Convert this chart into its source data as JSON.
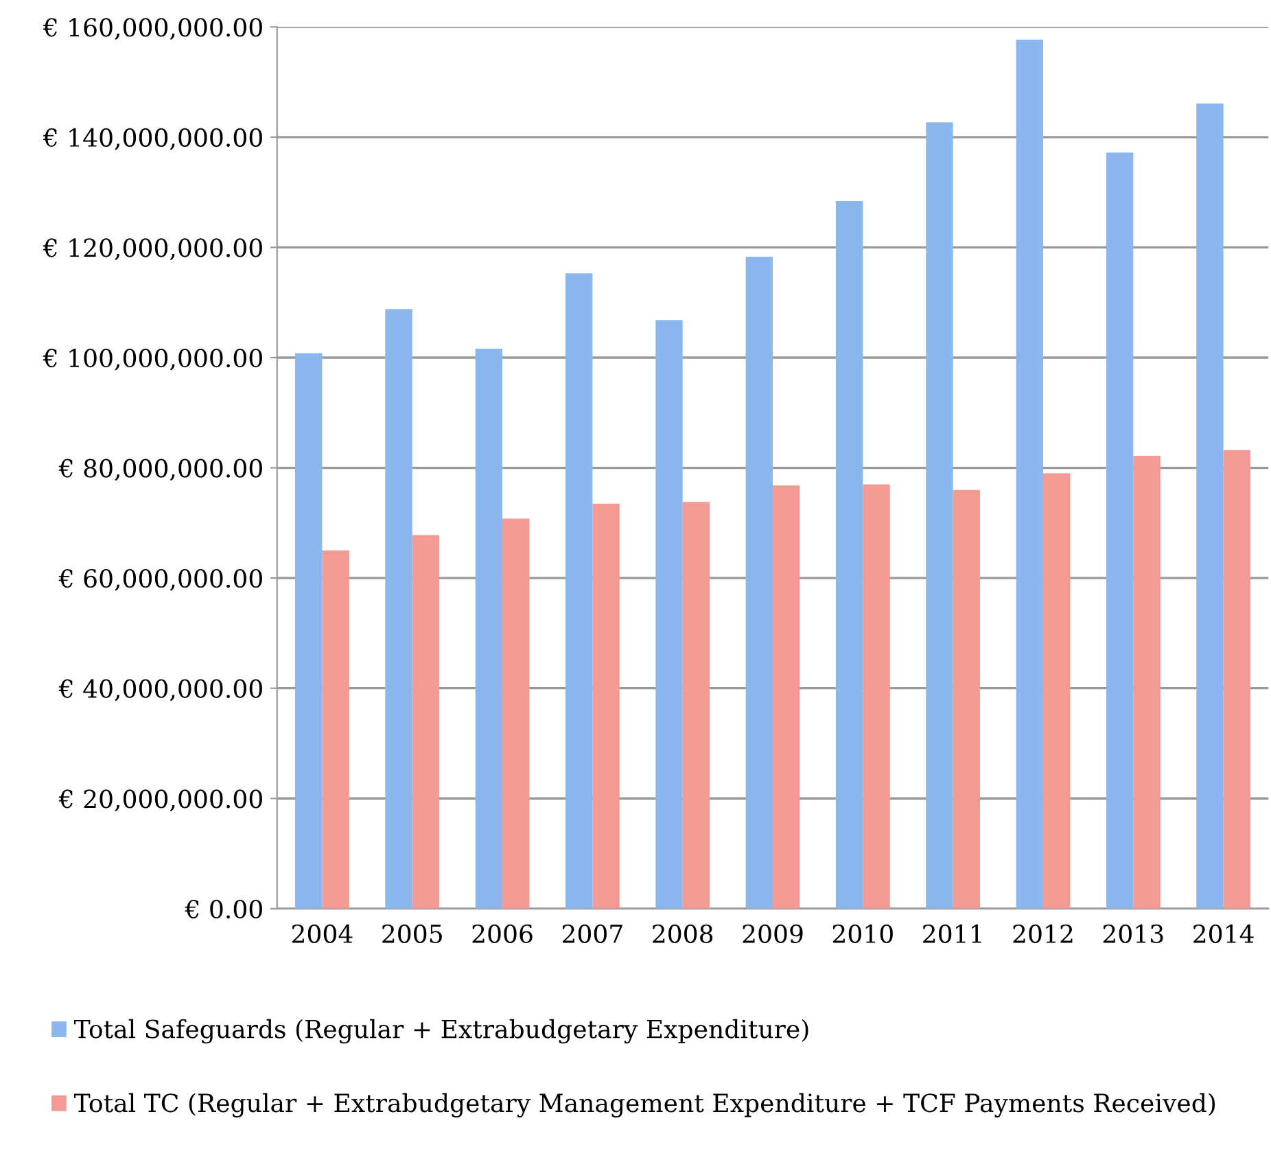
{
  "chart_data": {
    "type": "bar",
    "categories": [
      "2004",
      "2005",
      "2006",
      "2007",
      "2008",
      "2009",
      "2010",
      "2011",
      "2012",
      "2013",
      "2014"
    ],
    "series": [
      {
        "name": "Total Safeguards (Regular + Extrabudgetary Expenditure)",
        "color": "#8ab7ee",
        "values": [
          100800000.0,
          108800000.0,
          101600000.0,
          115300000.0,
          106800000.0,
          118300000.0,
          128400000.0,
          142700000.0,
          157700000.0,
          137200000.0,
          146100000.0
        ]
      },
      {
        "name": "Total TC (Regular + Extrabudgetary Management Expenditure + TCF Payments Received)",
        "color": "#f29a93",
        "values": [
          65000000.0,
          67800000.0,
          70800000.0,
          73500000.0,
          73800000.0,
          76800000.0,
          77000000.0,
          76000000.0,
          79000000.0,
          82200000.0,
          83200000.0
        ]
      }
    ],
    "ylim": [
      0,
      160000000
    ],
    "yticks": [
      {
        "value": 0,
        "label": "€ 0.00"
      },
      {
        "value": 20000000,
        "label": "€ 20,000,000.00"
      },
      {
        "value": 40000000,
        "label": "€ 40,000,000.00"
      },
      {
        "value": 60000000,
        "label": "€ 60,000,000.00"
      },
      {
        "value": 80000000,
        "label": "€ 80,000,000.00"
      },
      {
        "value": 100000000,
        "label": "€ 100,000,000.00"
      },
      {
        "value": 120000000,
        "label": "€ 120,000,000.00"
      },
      {
        "value": 140000000,
        "label": "€ 140,000,000.00"
      },
      {
        "value": 160000000,
        "label": "€ 160,000,000.00"
      }
    ],
    "grid": "y",
    "legend": "bottom"
  }
}
